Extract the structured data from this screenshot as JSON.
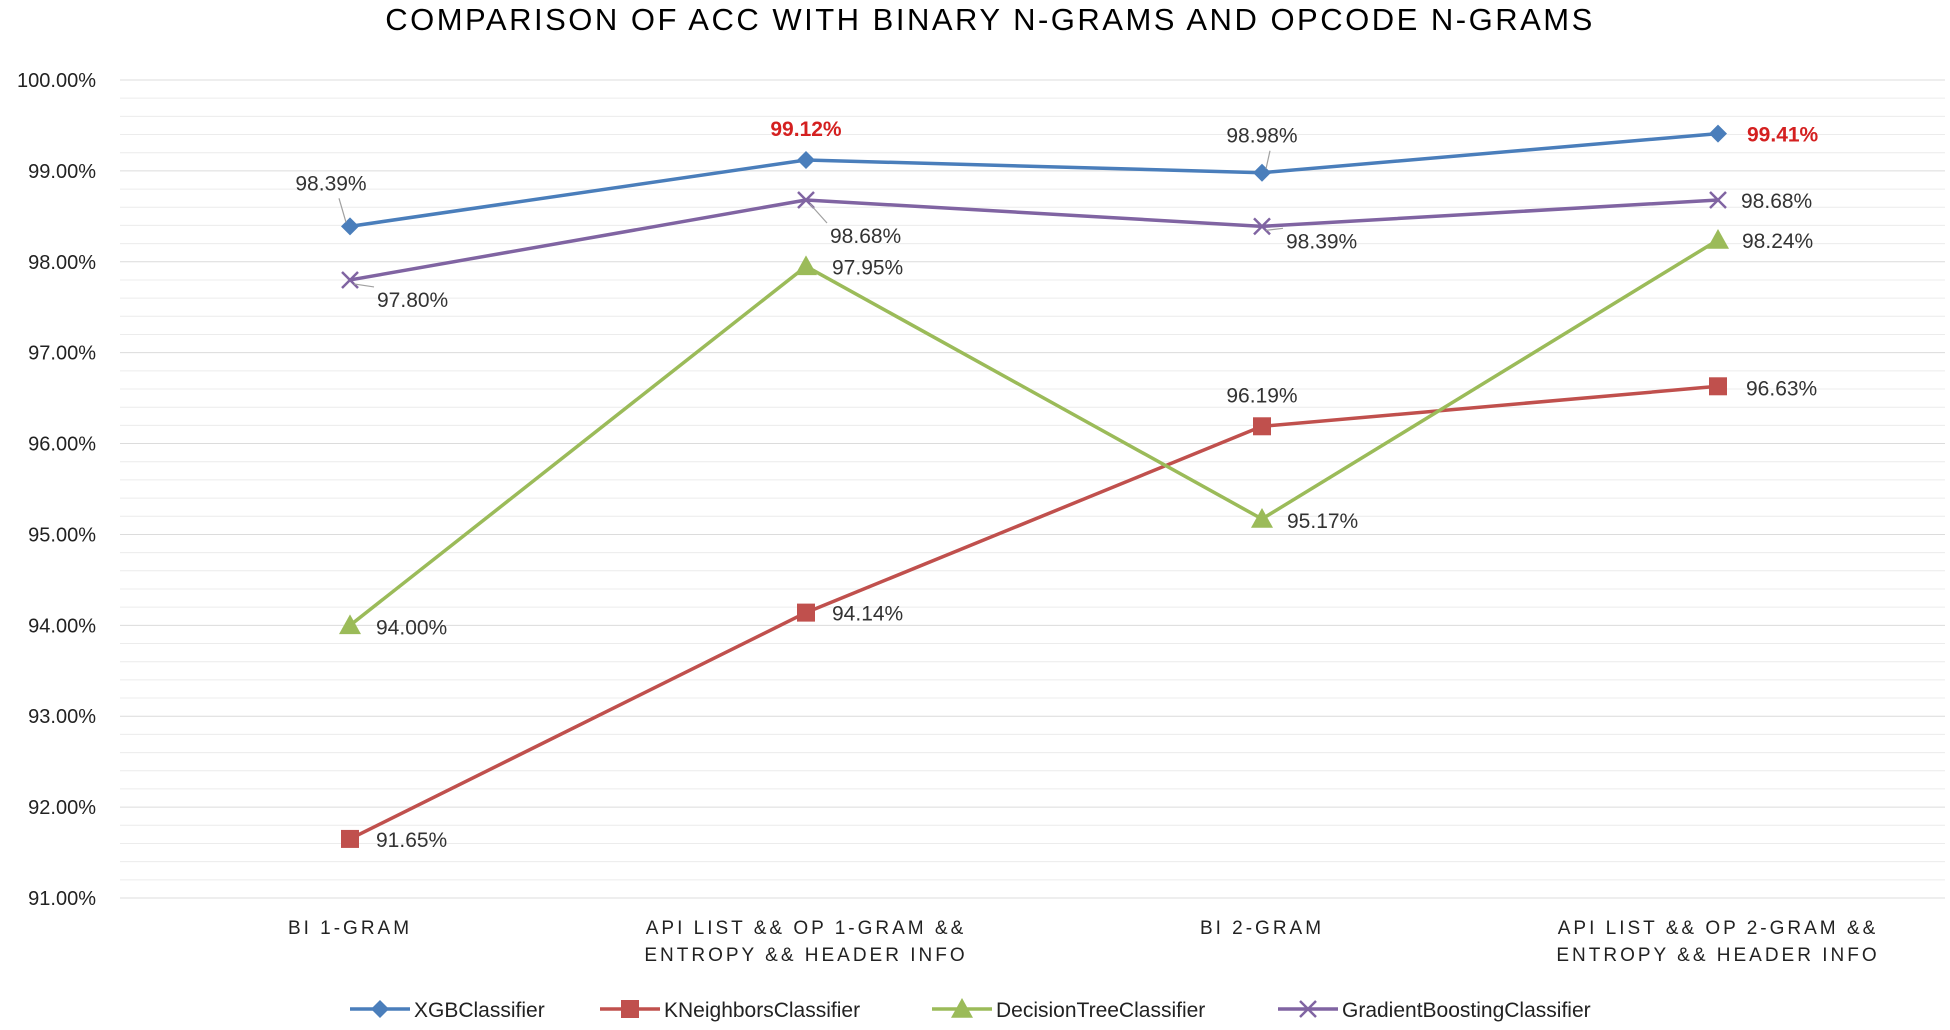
{
  "chart_data": {
    "type": "line",
    "title": "COMPARISON OF ACC WITH BINARY N-GRAMS AND OPCODE N-GRAMS",
    "xlabel": "",
    "ylabel": "",
    "ylim": [
      91.0,
      100.0
    ],
    "y_ticks": [
      "91.00%",
      "92.00%",
      "93.00%",
      "94.00%",
      "95.00%",
      "96.00%",
      "97.00%",
      "98.00%",
      "99.00%",
      "100.00%"
    ],
    "grid": true,
    "legend_position": "bottom",
    "categories": [
      [
        "BI 1-GRAM"
      ],
      [
        "API LIST && OP 1-GRAM &&",
        "ENTROPY && HEADER INFO"
      ],
      [
        "BI 2-GRAM"
      ],
      [
        "API LIST && OP 2-GRAM &&",
        "ENTROPY && HEADER INFO"
      ]
    ],
    "series": [
      {
        "name": "XGBClassifier",
        "color": "#4a7ebb",
        "marker": "diamond",
        "values": [
          98.39,
          99.12,
          98.98,
          99.41
        ],
        "labels": [
          "98.39%",
          "99.12%",
          "98.98%",
          "99.41%"
        ],
        "highlight": [
          false,
          true,
          false,
          true
        ]
      },
      {
        "name": "KNeighborsClassifier",
        "color": "#c0504d",
        "marker": "square",
        "values": [
          91.65,
          94.14,
          96.19,
          96.63
        ],
        "labels": [
          "91.65%",
          "94.14%",
          "96.19%",
          "96.63%"
        ],
        "highlight": [
          false,
          false,
          false,
          false
        ]
      },
      {
        "name": "DecisionTreeClassifier",
        "color": "#9bbb59",
        "marker": "triangle",
        "values": [
          94.0,
          97.95,
          95.17,
          98.24
        ],
        "labels": [
          "94.00%",
          "97.95%",
          "95.17%",
          "98.24%"
        ],
        "highlight": [
          false,
          false,
          false,
          false
        ]
      },
      {
        "name": "GradientBoostingClassifier",
        "color": "#8064a2",
        "marker": "x",
        "values": [
          97.8,
          98.68,
          98.39,
          98.68
        ],
        "labels": [
          "97.80%",
          "98.68%",
          "98.39%",
          "98.68%"
        ],
        "highlight": [
          false,
          false,
          false,
          false
        ]
      }
    ]
  }
}
